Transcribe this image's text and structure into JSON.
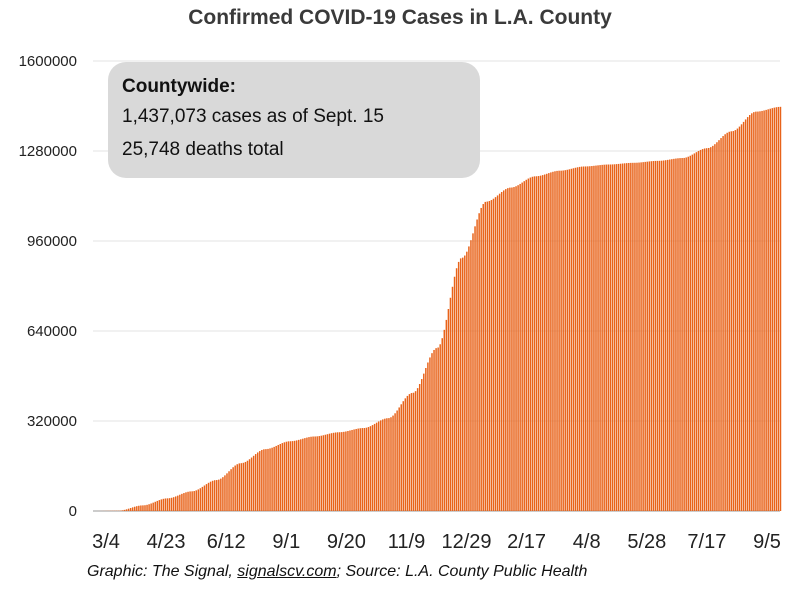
{
  "chart_data": {
    "type": "bar",
    "title": "Confirmed COVID-19 Cases in L.A. County",
    "xlabel": "",
    "ylabel": "",
    "ylim": [
      0,
      1600000
    ],
    "yticks": [
      0,
      320000,
      640000,
      960000,
      1280000,
      1600000
    ],
    "grid": true,
    "color": "#e8631a",
    "xtick_labels": [
      "3/4",
      "4/23",
      "6/12",
      "9/1",
      "9/20",
      "11/9",
      "12/29",
      "2/17",
      "4/8",
      "5/28",
      "7/17",
      "9/5"
    ],
    "curve": [
      {
        "x": "3/4",
        "y": 0
      },
      {
        "x": "3/24",
        "y": 1000
      },
      {
        "x": "4/23",
        "y": 20000
      },
      {
        "x": "5/23",
        "y": 45000
      },
      {
        "x": "6/12",
        "y": 70000
      },
      {
        "x": "7/2",
        "y": 110000
      },
      {
        "x": "7/22",
        "y": 170000
      },
      {
        "x": "8/11",
        "y": 220000
      },
      {
        "x": "9/1",
        "y": 248000
      },
      {
        "x": "9/20",
        "y": 265000
      },
      {
        "x": "10/10",
        "y": 280000
      },
      {
        "x": "10/25",
        "y": 295000
      },
      {
        "x": "11/9",
        "y": 330000
      },
      {
        "x": "11/24",
        "y": 420000
      },
      {
        "x": "12/9",
        "y": 580000
      },
      {
        "x": "12/29",
        "y": 900000
      },
      {
        "x": "1/13",
        "y": 1100000
      },
      {
        "x": "1/28",
        "y": 1150000
      },
      {
        "x": "2/17",
        "y": 1190000
      },
      {
        "x": "3/14",
        "y": 1210000
      },
      {
        "x": "4/8",
        "y": 1225000
      },
      {
        "x": "5/3",
        "y": 1232000
      },
      {
        "x": "5/28",
        "y": 1238000
      },
      {
        "x": "6/22",
        "y": 1245000
      },
      {
        "x": "7/17",
        "y": 1255000
      },
      {
        "x": "8/1",
        "y": 1290000
      },
      {
        "x": "8/16",
        "y": 1350000
      },
      {
        "x": "9/5",
        "y": 1420000
      },
      {
        "x": "9/15",
        "y": 1437073
      }
    ]
  },
  "callout": {
    "heading": "Countywide:",
    "cases_line": "1,437,073 cases as of Sept. 15",
    "deaths_line": "25,748 deaths total"
  },
  "source": {
    "prefix": "Graphic: The Signal, ",
    "link": "signalscv.com",
    "suffix": "; Source: L.A. County Public Health"
  }
}
